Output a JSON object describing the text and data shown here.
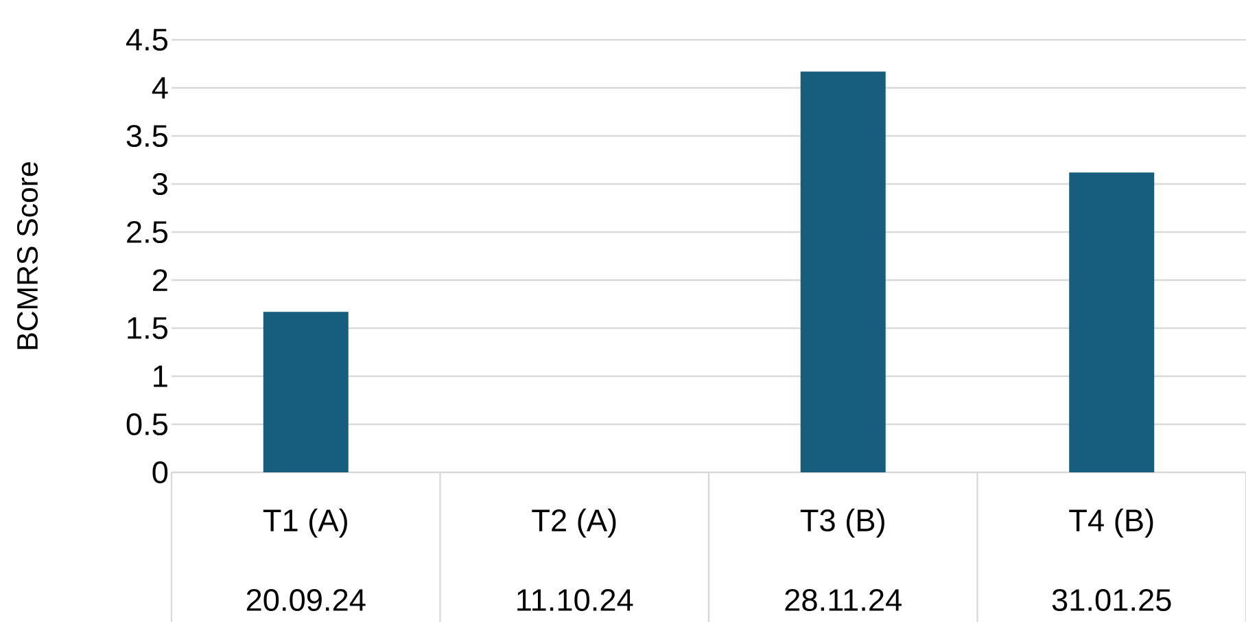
{
  "chart_data": {
    "type": "bar",
    "ylabel": "BCMRS Score",
    "categories": [
      "T1 (A)",
      "T2 (A)",
      "T3 (B)",
      "T4 (B)"
    ],
    "values": [
      1.67,
      0,
      4.17,
      3.12
    ],
    "color": "#175e7e",
    "ylim": [
      0,
      4.5
    ],
    "yticks": [
      0,
      0.5,
      1,
      1.5,
      2,
      2.5,
      3,
      3.5,
      4,
      4.5
    ],
    "grid": "y",
    "annotations": [
      "20.09.24",
      "11.10.24",
      "28.11.24",
      "31.01.25"
    ]
  }
}
